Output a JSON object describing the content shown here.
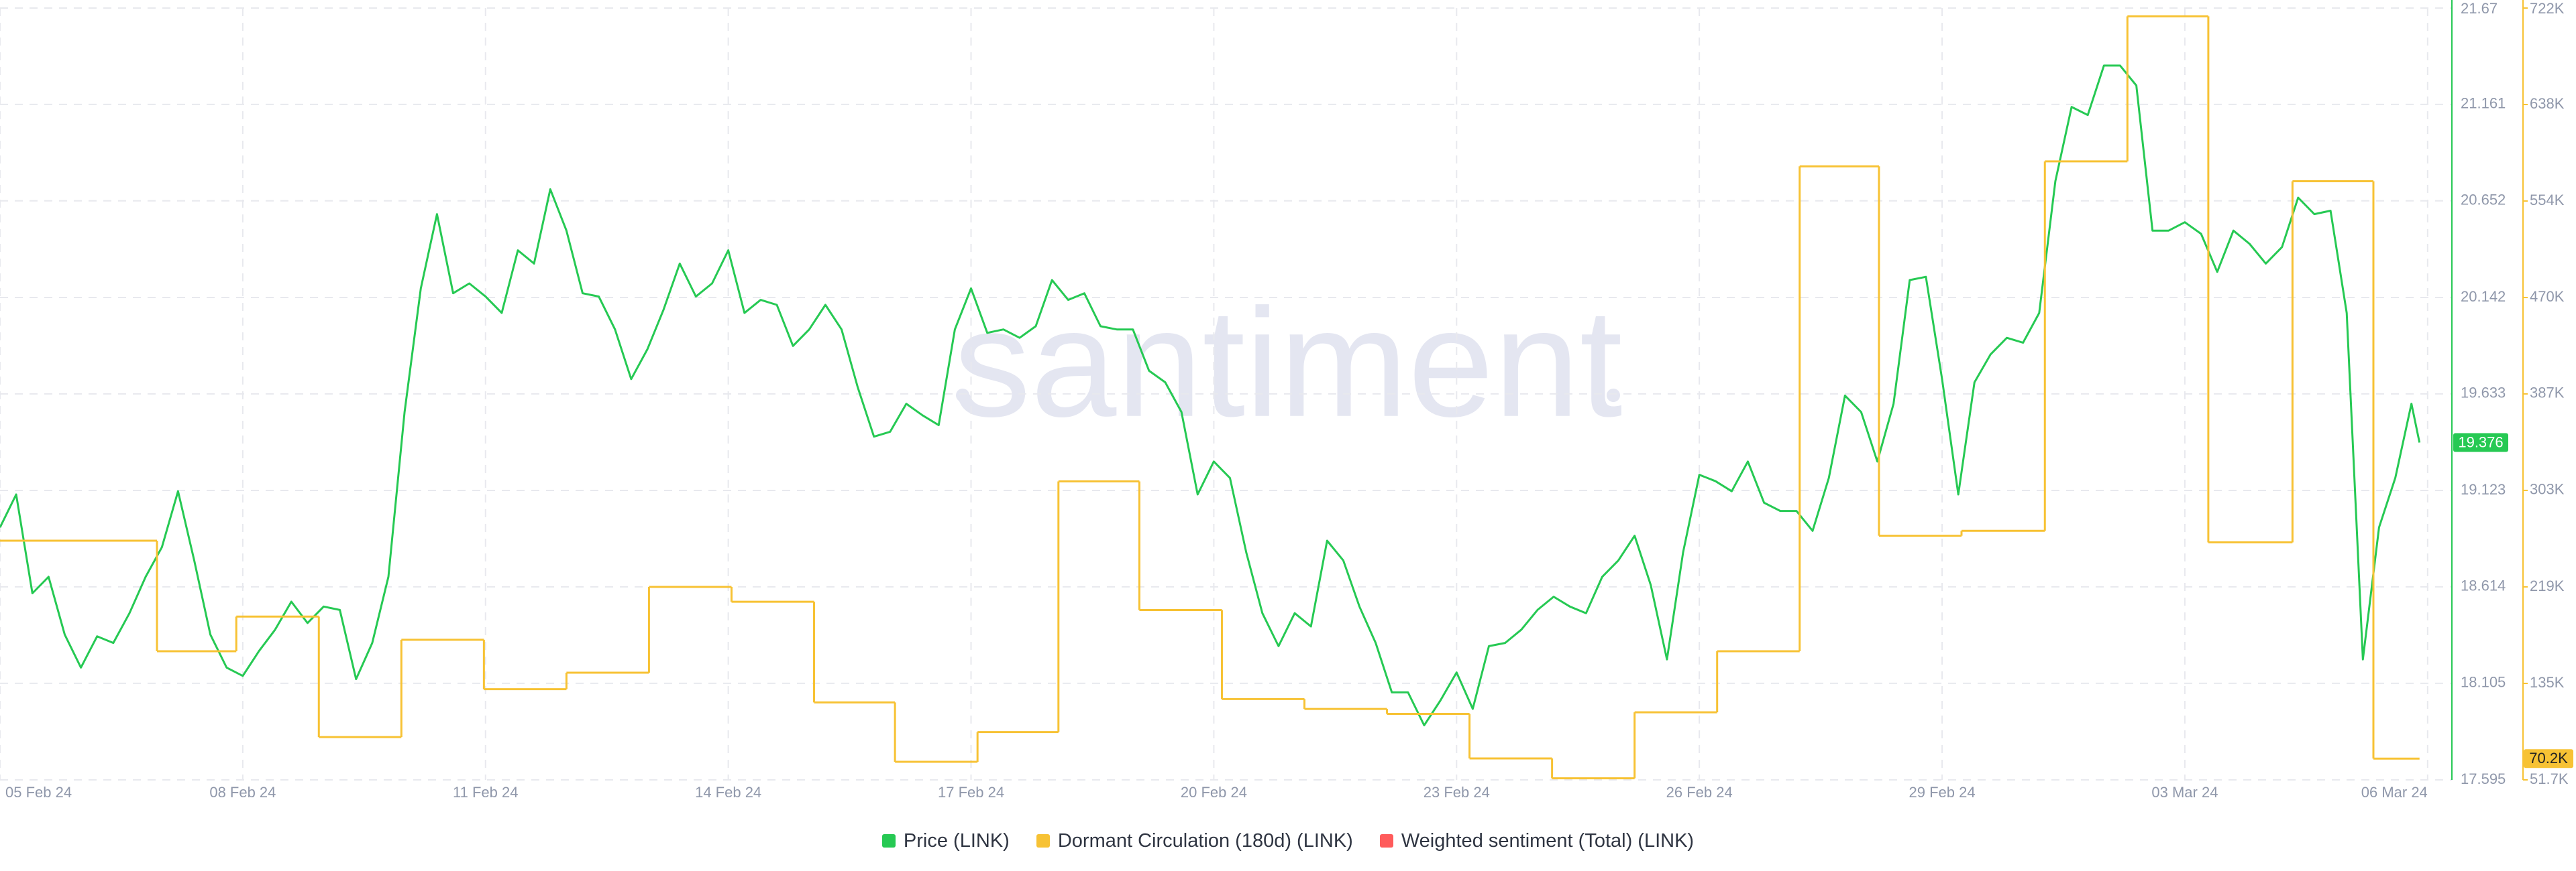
{
  "chart_data": {
    "type": "line",
    "watermark": "santiment",
    "xlim": [
      0,
      30.3
    ],
    "xticks": [
      {
        "value": 0,
        "label": "05 Feb 24"
      },
      {
        "value": 3,
        "label": "08 Feb 24"
      },
      {
        "value": 6,
        "label": "11 Feb 24"
      },
      {
        "value": 9,
        "label": "14 Feb 24"
      },
      {
        "value": 12,
        "label": "17 Feb 24"
      },
      {
        "value": 15,
        "label": "20 Feb 24"
      },
      {
        "value": 18,
        "label": "23 Feb 24"
      },
      {
        "value": 21,
        "label": "26 Feb 24"
      },
      {
        "value": 24,
        "label": "29 Feb 24"
      },
      {
        "value": 27,
        "label": "03 Mar 24"
      },
      {
        "value": 30,
        "label": "06 Mar 24"
      }
    ],
    "ylim": [
      17.595,
      21.67
    ],
    "yticks": [
      21.67,
      21.161,
      20.652,
      20.142,
      19.633,
      19.123,
      18.614,
      18.105,
      17.595
    ],
    "y2lim": [
      51700,
      722000
    ],
    "y2ticks": [
      {
        "value": 722000,
        "label": "722K"
      },
      {
        "value": 638200,
        "label": "638K"
      },
      {
        "value": 554400,
        "label": "554K"
      },
      {
        "value": 470600,
        "label": "470K"
      },
      {
        "value": 386900,
        "label": "387K"
      },
      {
        "value": 303100,
        "label": "303K"
      },
      {
        "value": 219300,
        "label": "219K"
      },
      {
        "value": 135500,
        "label": "135K"
      },
      {
        "value": 51700,
        "label": "51.7K"
      }
    ],
    "grid": true,
    "series": [
      {
        "name": "Price (LINK)",
        "color": "#26c953",
        "axis": "y",
        "last_label": "19.376",
        "x": [
          0,
          0.2,
          0.4,
          0.6,
          0.8,
          1,
          1.2,
          1.4,
          1.6,
          1.8,
          2,
          2.2,
          2.4,
          2.6,
          2.8,
          3,
          3.2,
          3.4,
          3.6,
          3.8,
          4,
          4.2,
          4.4,
          4.6,
          4.8,
          5,
          5.2,
          5.4,
          5.6,
          5.8,
          6,
          6.2,
          6.4,
          6.6,
          6.8,
          7,
          7.2,
          7.4,
          7.6,
          7.8,
          8,
          8.2,
          8.4,
          8.6,
          8.8,
          9,
          9.2,
          9.4,
          9.6,
          9.8,
          10,
          10.2,
          10.4,
          10.6,
          10.8,
          11,
          11.2,
          11.4,
          11.6,
          11.8,
          12,
          12.2,
          12.4,
          12.6,
          12.8,
          13,
          13.2,
          13.4,
          13.6,
          13.8,
          14,
          14.2,
          14.4,
          14.6,
          14.8,
          15,
          15.2,
          15.4,
          15.6,
          15.8,
          16,
          16.2,
          16.4,
          16.6,
          16.8,
          17,
          17.2,
          17.4,
          17.6,
          17.8,
          18,
          18.2,
          18.4,
          18.6,
          18.8,
          19,
          19.2,
          19.4,
          19.6,
          19.8,
          20,
          20.2,
          20.4,
          20.6,
          20.8,
          21,
          21.2,
          21.4,
          21.6,
          21.8,
          22,
          22.2,
          22.4,
          22.6,
          22.8,
          23,
          23.2,
          23.4,
          23.6,
          23.8,
          24,
          24.2,
          24.4,
          24.6,
          24.8,
          25,
          25.2,
          25.4,
          25.6,
          25.8,
          26,
          26.2,
          26.4,
          26.6,
          26.8,
          27,
          27.2,
          27.4,
          27.6,
          27.8,
          28,
          28.2,
          28.4,
          28.6,
          28.8,
          29,
          29.2,
          29.4,
          29.6,
          29.8,
          29.9
        ],
        "values": [
          18.928,
          19.102,
          18.58,
          18.667,
          18.362,
          18.188,
          18.353,
          18.318,
          18.475,
          18.667,
          18.823,
          19.119,
          18.754,
          18.362,
          18.188,
          18.144,
          18.275,
          18.388,
          18.536,
          18.423,
          18.51,
          18.492,
          18.127,
          18.318,
          18.667,
          19.537,
          20.19,
          20.582,
          20.164,
          20.216,
          20.147,
          20.06,
          20.391,
          20.321,
          20.713,
          20.495,
          20.164,
          20.147,
          19.973,
          19.711,
          19.868,
          20.077,
          20.321,
          20.147,
          20.216,
          20.391,
          20.06,
          20.129,
          20.103,
          19.886,
          19.973,
          20.103,
          19.973,
          19.668,
          19.407,
          19.433,
          19.581,
          19.52,
          19.468,
          19.973,
          20.19,
          19.955,
          19.973,
          19.929,
          19.99,
          20.234,
          20.129,
          20.164,
          19.99,
          19.973,
          19.973,
          19.755,
          19.694,
          19.537,
          19.102,
          19.276,
          19.189,
          18.797,
          18.475,
          18.301,
          18.475,
          18.405,
          18.858,
          18.754,
          18.51,
          18.318,
          18.057,
          18.057,
          17.883,
          18.014,
          18.162,
          17.97,
          18.301,
          18.318,
          18.388,
          18.492,
          18.562,
          18.51,
          18.475,
          18.667,
          18.754,
          18.884,
          18.623,
          18.231,
          18.797,
          19.206,
          19.172,
          19.119,
          19.276,
          19.058,
          19.015,
          19.015,
          18.91,
          19.189,
          19.624,
          19.537,
          19.276,
          19.581,
          20.234,
          20.251,
          19.711,
          19.102,
          19.694,
          19.842,
          19.929,
          19.903,
          20.06,
          20.756,
          21.148,
          21.105,
          21.366,
          21.366,
          21.261,
          20.495,
          20.495,
          20.539,
          20.478,
          20.277,
          20.495,
          20.425,
          20.321,
          20.408,
          20.669,
          20.582,
          20.6,
          20.06,
          18.231,
          18.928,
          19.189,
          19.581,
          19.376
        ]
      },
      {
        "name": "Dormant Circulation (180d) (LINK)",
        "color": "#f7c234",
        "axis": "y2",
        "step": true,
        "last_label": "70.2K",
        "x": [
          0,
          1.94,
          2.92,
          3.94,
          4.96,
          5.98,
          7,
          8.02,
          9.04,
          10.06,
          11.06,
          12.08,
          13.08,
          14.08,
          15.1,
          16.12,
          17.14,
          18.16,
          19.18,
          20.2,
          21.22,
          22.24,
          23.22,
          24.24,
          25.27,
          26.29,
          27.29,
          28.33,
          29.33,
          29.9
        ],
        "values": [
          259400,
          163400,
          193500,
          88900,
          173400,
          130500,
          144800,
          219300,
          206400,
          119000,
          67400,
          93200,
          310900,
          199200,
          121900,
          113300,
          109000,
          70300,
          53100,
          110400,
          163400,
          584500,
          263700,
          268000,
          588800,
          714800,
          258000,
          571600,
          70200,
          70200
        ]
      },
      {
        "name": "Weighted sentiment (Total) (LINK)",
        "color": "#ff5b5b",
        "x": [],
        "values": []
      }
    ]
  }
}
